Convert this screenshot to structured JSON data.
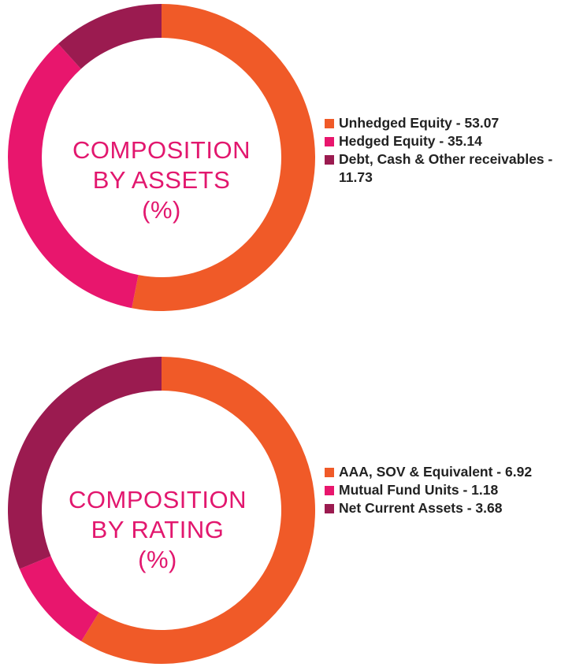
{
  "chart_data": [
    {
      "type": "pie",
      "title_lines": [
        "COMPOSITION",
        "BY ASSETS",
        "(%)"
      ],
      "categories": [
        "Unhedged Equity",
        "Hedged Equity",
        "Debt, Cash & Other receivables"
      ],
      "values": [
        53.07,
        35.14,
        11.73
      ],
      "legend_labels": [
        "Unhedged Equity - 53.07",
        "Hedged Equity - 35.14",
        "Debt, Cash & Other receivables - 11.73"
      ],
      "colors": [
        "#f05a28",
        "#e8166d",
        "#9b1b50"
      ],
      "legend_position": "right"
    },
    {
      "type": "pie",
      "title_lines": [
        "COMPOSITION",
        "BY RATING",
        "(%)"
      ],
      "categories": [
        "AAA, SOV & Equivalent",
        "Mutual Fund Units",
        "Net Current Assets"
      ],
      "values": [
        6.92,
        1.18,
        3.68
      ],
      "legend_labels": [
        "AAA, SOV & Equivalent - 6.92",
        "Mutual Fund Units - 1.18",
        "Net Current Assets - 3.68"
      ],
      "colors": [
        "#f05a28",
        "#e8166d",
        "#9b1b50"
      ],
      "legend_position": "right"
    }
  ]
}
